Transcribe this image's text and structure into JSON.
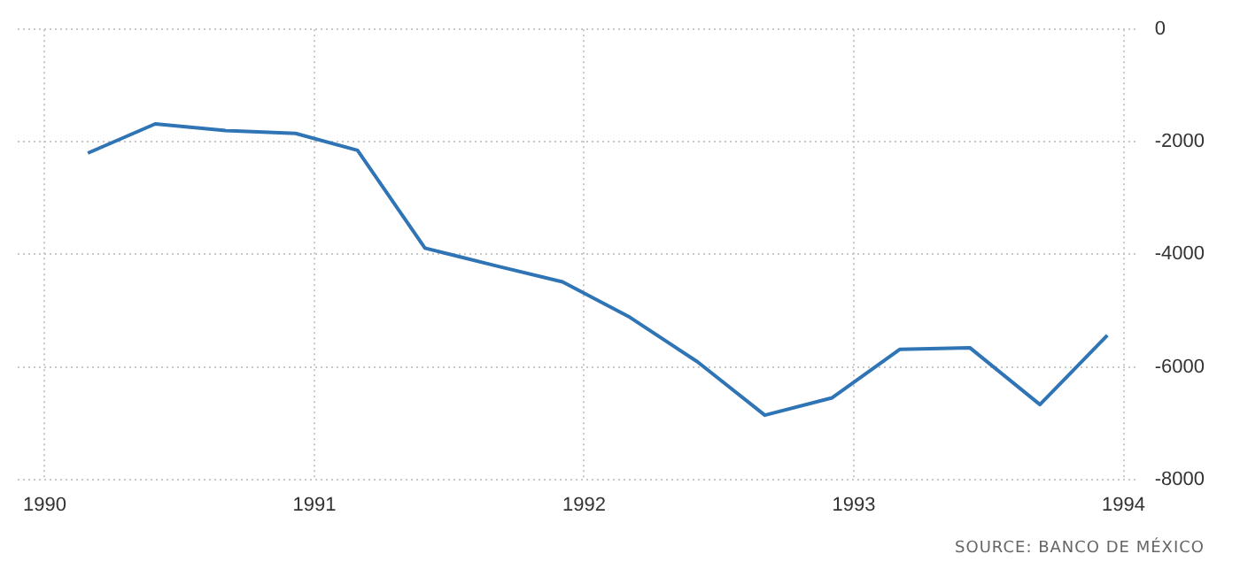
{
  "chart_data": {
    "type": "line",
    "x": [
      1990.16,
      1990.41,
      1990.67,
      1990.93,
      1991.16,
      1991.41,
      1991.67,
      1991.92,
      1992.17,
      1992.42,
      1992.67,
      1992.92,
      1993.17,
      1993.43,
      1993.69,
      1993.94
    ],
    "series": [
      {
        "color": "#2f74b5",
        "values": [
          -2200,
          -1680,
          -1800,
          -1850,
          -2150,
          -3890,
          -4200,
          -4490,
          -5120,
          -5910,
          -6860,
          -6550,
          -5690,
          -5660,
          -6670,
          -5440
        ]
      }
    ],
    "xlim": [
      1989.9,
      1994.05
    ],
    "xticks": [
      1990,
      1991,
      1992,
      1993,
      1994
    ],
    "ylim": [
      -8000,
      0
    ],
    "yticks": [
      -8000,
      -6000,
      -4000,
      -2000,
      0
    ],
    "grid": true,
    "legend": false,
    "marker": "none",
    "line_style": "solid",
    "annotations": [
      "SOURCE: BANCO DE MÉXICO"
    ]
  }
}
